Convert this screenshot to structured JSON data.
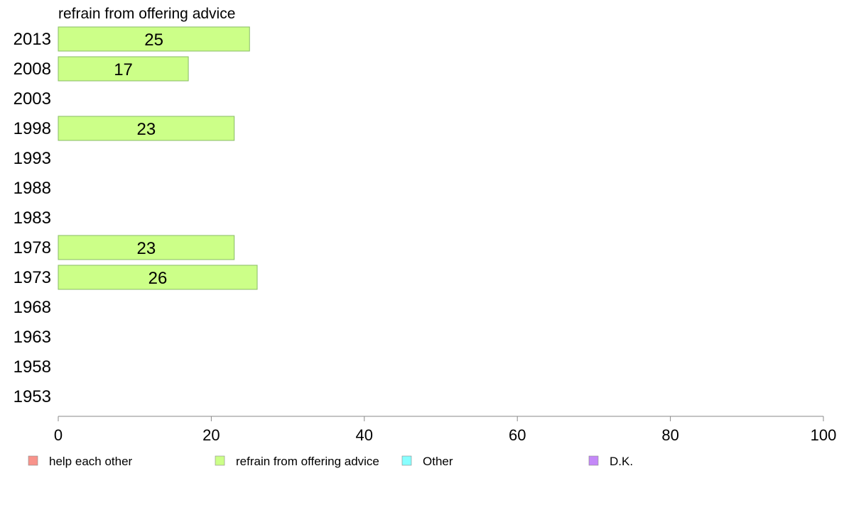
{
  "chart_data": {
    "type": "bar",
    "orientation": "horizontal",
    "panel_title": "refrain from offering advice",
    "categories": [
      "2013",
      "2008",
      "2003",
      "1998",
      "1993",
      "1988",
      "1983",
      "1978",
      "1973",
      "1968",
      "1963",
      "1958",
      "1953"
    ],
    "series": [
      {
        "name": "refrain from offering advice",
        "values": [
          25,
          17,
          null,
          23,
          null,
          null,
          null,
          23,
          26,
          null,
          null,
          null,
          null
        ],
        "display_labels": [
          "25",
          "17",
          "",
          "23",
          "",
          "",
          "",
          "23",
          "26",
          "",
          "",
          "",
          ""
        ]
      }
    ],
    "xlim": [
      0,
      100
    ],
    "x_ticks": [
      "0",
      "20",
      "40",
      "60",
      "80",
      "100"
    ],
    "grid": false,
    "legend": {
      "placement": "bottom",
      "items": [
        {
          "label": "help each other",
          "color": "#f8938b"
        },
        {
          "label": "refrain from offering advice",
          "color": "#ccff88"
        },
        {
          "label": "Other",
          "color": "#88ffff"
        },
        {
          "label": "D.K.",
          "color": "#c488f8"
        }
      ]
    },
    "colors": {
      "bar_fill": "#ccff88",
      "bar_stroke": "#88bb66",
      "axis": "#888888"
    }
  }
}
